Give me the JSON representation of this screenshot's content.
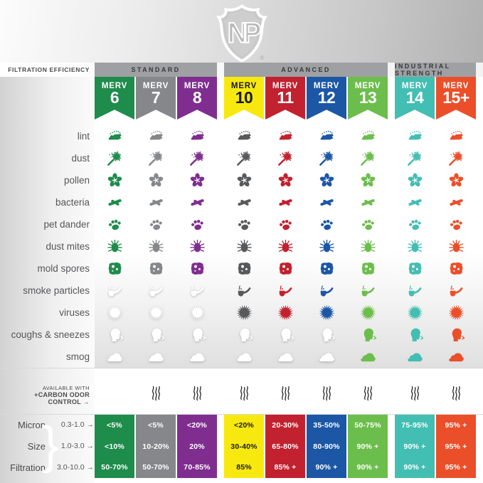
{
  "ui": {
    "logo_text": "NP",
    "registered_mark": "®",
    "filtration_efficiency_label": "FILTRATION EFFICIENCY →",
    "carbon_label_line1": "AVAILABLE WITH",
    "carbon_label_line2": "+CARBON ODOR CONTROL →",
    "micron_bracket": "}"
  },
  "chart_data": {
    "type": "table",
    "title": "Filtration efficiency comparison by MERV rating",
    "groups": [
      {
        "label": "STANDARD",
        "columns": [
          0,
          1,
          2
        ]
      },
      {
        "label": "ADVANCED",
        "columns": [
          3,
          4,
          5,
          6
        ]
      },
      {
        "label": "INDUSTRIAL STRENGTH",
        "columns": [
          7,
          8
        ]
      }
    ],
    "columns": [
      {
        "label": "MERV",
        "number": "6",
        "color": "#1E8C4B",
        "icon_color": "#1E8C4B",
        "text_color": "#FFFFFF"
      },
      {
        "label": "MERV",
        "number": "7",
        "color": "#85878A",
        "icon_color": "#85878A",
        "text_color": "#FFFFFF"
      },
      {
        "label": "MERV",
        "number": "8",
        "color": "#7F2E8F",
        "icon_color": "#7F2E8F",
        "text_color": "#FFFFFF"
      },
      {
        "label": "MERV",
        "number": "10",
        "color": "#F7E90F",
        "icon_color": "#58595B",
        "text_color": "#1A1A1A"
      },
      {
        "label": "MERV",
        "number": "11",
        "color": "#C2212F",
        "icon_color": "#C2212F",
        "text_color": "#FFFFFF"
      },
      {
        "label": "MERV",
        "number": "12",
        "color": "#1C57A6",
        "icon_color": "#1C57A6",
        "text_color": "#FFFFFF"
      },
      {
        "label": "MERV",
        "number": "13",
        "color": "#6CBE4C",
        "icon_color": "#6CBE4C",
        "text_color": "#FFFFFF"
      },
      {
        "label": "MERV",
        "number": "14",
        "color": "#43BEB3",
        "icon_color": "#43BEB3",
        "text_color": "#FFFFFF"
      },
      {
        "label": "MERV",
        "number": "15+",
        "color": "#EB4F29",
        "icon_color": "#EB4F29",
        "text_color": "#FFFFFF"
      }
    ],
    "rows": [
      {
        "label": "lint",
        "icon": "lint-icon",
        "filtered": [
          1,
          1,
          1,
          1,
          1,
          1,
          1,
          1,
          1
        ]
      },
      {
        "label": "dust",
        "icon": "dust-icon",
        "filtered": [
          1,
          1,
          1,
          1,
          1,
          1,
          1,
          1,
          1
        ]
      },
      {
        "label": "pollen",
        "icon": "pollen-icon",
        "filtered": [
          1,
          1,
          1,
          1,
          1,
          1,
          1,
          1,
          1
        ]
      },
      {
        "label": "bacteria",
        "icon": "bacteria-icon",
        "filtered": [
          1,
          1,
          1,
          1,
          1,
          1,
          1,
          1,
          1
        ]
      },
      {
        "label": "pet dander",
        "icon": "paw-icon",
        "filtered": [
          1,
          1,
          1,
          1,
          1,
          1,
          1,
          1,
          1
        ]
      },
      {
        "label": "dust mites",
        "icon": "dust-mite-icon",
        "filtered": [
          1,
          1,
          1,
          1,
          1,
          1,
          1,
          1,
          1
        ]
      },
      {
        "label": "mold spores",
        "icon": "mold-spore-icon",
        "filtered": [
          1,
          1,
          1,
          1,
          1,
          1,
          1,
          1,
          1
        ]
      },
      {
        "label": "smoke particles",
        "icon": "pipe-icon",
        "filtered": [
          0,
          0,
          0,
          1,
          1,
          1,
          1,
          1,
          1
        ]
      },
      {
        "label": "viruses",
        "icon": "virus-icon",
        "filtered": [
          0,
          0,
          0,
          1,
          1,
          1,
          1,
          1,
          1
        ]
      },
      {
        "label": "coughs & sneezes",
        "icon": "cough-icon",
        "filtered": [
          0,
          0,
          0,
          0,
          0,
          0,
          1,
          1,
          1
        ]
      },
      {
        "label": "smog",
        "icon": "smog-icon",
        "filtered": [
          0,
          0,
          0,
          0,
          0,
          0,
          1,
          1,
          1
        ]
      }
    ],
    "carbon_odor_control": [
      0,
      1,
      1,
      1,
      1,
      1,
      1,
      1,
      1
    ],
    "bottom_table": {
      "row_labels": [
        "Micron",
        "Size",
        "Filtration"
      ],
      "ranges": [
        "0.3-1.0",
        "1.0-3.0",
        "3.0-10.0"
      ],
      "values": [
        [
          "<5%",
          "<10%",
          "50-70%"
        ],
        [
          "<5%",
          "10-20%",
          "50-70%"
        ],
        [
          "<20%",
          "20%",
          "70-85%"
        ],
        [
          "<20%",
          "30-40%",
          "85%"
        ],
        [
          "20-30%",
          "65-80%",
          "85% +"
        ],
        [
          "35-50%",
          "80-90%",
          "90% +"
        ],
        [
          "50-75%",
          "90% +",
          "90% +"
        ],
        [
          "75-95%",
          "90% +",
          "90% +"
        ],
        [
          "95% +",
          "95% +",
          "95% +"
        ]
      ]
    }
  }
}
